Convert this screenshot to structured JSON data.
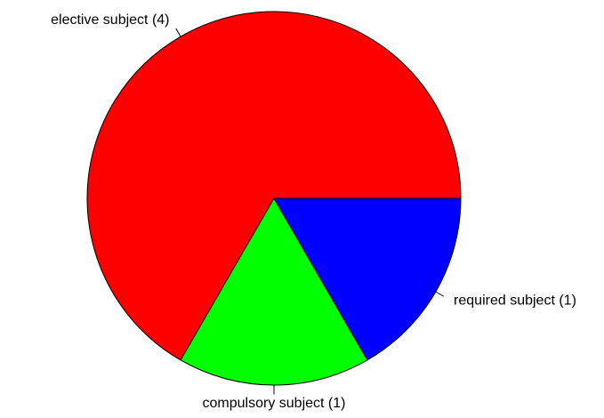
{
  "chart_data": {
    "type": "pie",
    "categories": [
      "elective subject (4)",
      "compulsory subject (1)",
      "required subject (1)"
    ],
    "values": [
      4,
      1,
      1
    ],
    "colors": [
      "#ff0000",
      "#00ff00",
      "#0000ff"
    ]
  }
}
